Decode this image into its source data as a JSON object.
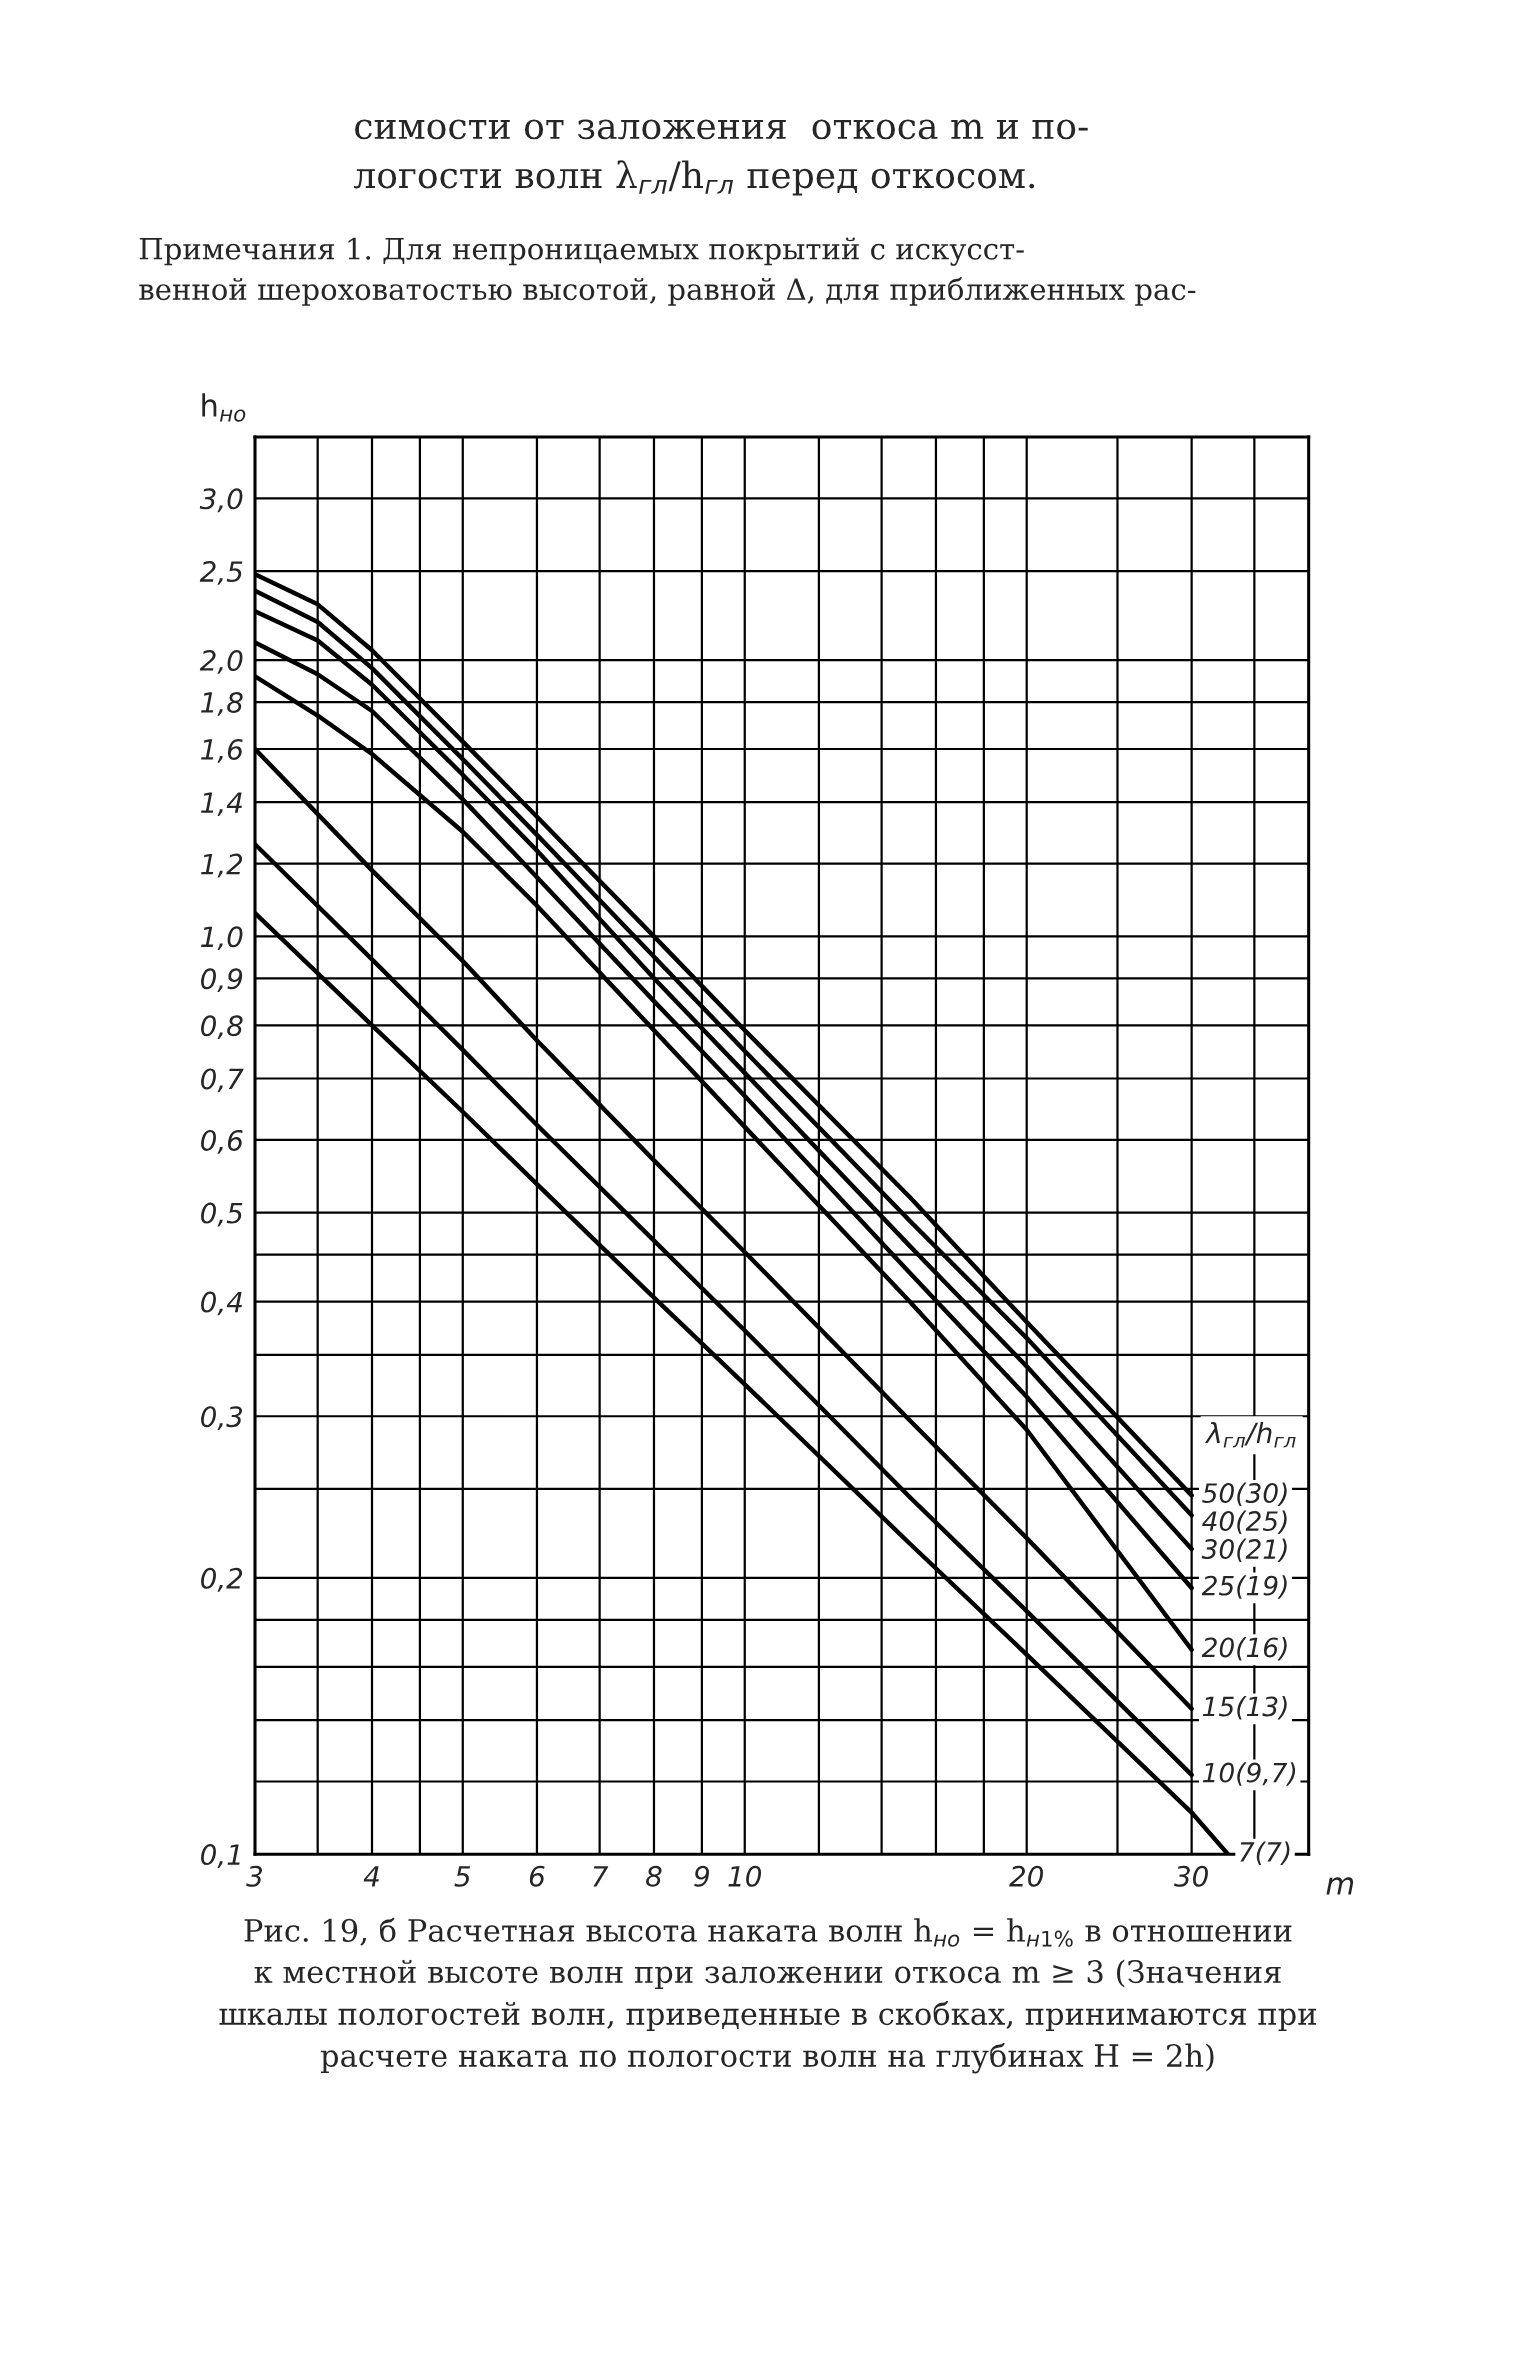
{
  "chart_data": {
    "type": "line",
    "xlabel": "m",
    "ylabel": "h$_{но}$",
    "legend_title": "λ$_{гл}$/h$_{гл}$",
    "log": "xy",
    "grid": true,
    "xlim": [
      3,
      40
    ],
    "ylim": [
      0.1,
      3.5
    ],
    "xticks": [
      3,
      {
        "value": 3.5,
        "label": null
      },
      4,
      {
        "value": 4.5,
        "label": null
      },
      5,
      6,
      7,
      8,
      9,
      10,
      {
        "value": 12,
        "label": null
      },
      {
        "value": 14,
        "label": null
      },
      {
        "value": 16,
        "label": null
      },
      {
        "value": 18,
        "label": null
      },
      20,
      {
        "value": 25,
        "label": null
      },
      30,
      {
        "value": 35,
        "label": null
      }
    ],
    "yticks": [
      {
        "value": 0.1,
        "label": "0,1"
      },
      {
        "value": 0.12,
        "label": null
      },
      {
        "value": 0.14,
        "label": null
      },
      {
        "value": 0.16,
        "label": null
      },
      {
        "value": 0.18,
        "label": null
      },
      {
        "value": 0.2,
        "label": "0,2"
      },
      {
        "value": 0.25,
        "label": null
      },
      {
        "value": 0.3,
        "label": "0,3"
      },
      {
        "value": 0.35,
        "label": null
      },
      {
        "value": 0.4,
        "label": "0,4"
      },
      {
        "value": 0.45,
        "label": null
      },
      {
        "value": 0.5,
        "label": "0,5"
      },
      {
        "value": 0.6,
        "label": "0,6"
      },
      {
        "value": 0.7,
        "label": "0,7"
      },
      {
        "value": 0.8,
        "label": "0,8"
      },
      {
        "value": 0.9,
        "label": "0,9"
      },
      {
        "value": 1.0,
        "label": "1,0"
      },
      {
        "value": 1.2,
        "label": "1,2"
      },
      {
        "value": 1.4,
        "label": "1,4"
      },
      {
        "value": 1.6,
        "label": "1,6"
      },
      {
        "value": 1.8,
        "label": "1,8"
      },
      {
        "value": 2.0,
        "label": "2,0"
      },
      {
        "value": 2.5,
        "label": "2,5"
      },
      {
        "value": 3.0,
        "label": "3,0"
      }
    ],
    "series": [
      {
        "name": "50(30)",
        "color": "#000000",
        "x": [
          3,
          3.5,
          4,
          5,
          6,
          8,
          10,
          15,
          20,
          30
        ],
        "values": [
          2.48,
          2.3,
          2.05,
          1.63,
          1.35,
          1.0,
          0.79,
          0.52,
          0.38,
          0.246
        ]
      },
      {
        "name": "40(25)",
        "color": "#000000",
        "x": [
          3,
          3.5,
          4,
          5,
          6,
          8,
          10,
          15,
          20,
          30
        ],
        "values": [
          2.38,
          2.2,
          1.96,
          1.56,
          1.29,
          0.95,
          0.75,
          0.49,
          0.365,
          0.234
        ]
      },
      {
        "name": "30(21)",
        "color": "#000000",
        "x": [
          3,
          3.5,
          4,
          5,
          6,
          8,
          10,
          15,
          20,
          30
        ],
        "values": [
          2.26,
          2.1,
          1.88,
          1.5,
          1.24,
          0.9,
          0.71,
          0.46,
          0.34,
          0.215
        ]
      },
      {
        "name": "25(19)",
        "color": "#000000",
        "x": [
          3,
          3.5,
          4,
          5,
          6,
          8,
          10,
          15,
          20,
          30
        ],
        "values": [
          2.09,
          1.93,
          1.76,
          1.41,
          1.16,
          0.85,
          0.67,
          0.43,
          0.315,
          0.195
        ]
      },
      {
        "name": "20(16)",
        "color": "#000000",
        "x": [
          3,
          3.5,
          4,
          5,
          6,
          8,
          10,
          15,
          20,
          30
        ],
        "values": [
          1.92,
          1.74,
          1.58,
          1.3,
          1.08,
          0.79,
          0.62,
          0.4,
          0.29,
          0.167
        ]
      },
      {
        "name": "15(13)",
        "color": "#000000",
        "x": [
          3,
          4,
          5,
          6,
          8,
          10,
          15,
          20,
          30
        ],
        "values": [
          1.6,
          1.18,
          0.94,
          0.77,
          0.57,
          0.453,
          0.297,
          0.221,
          0.144
        ]
      },
      {
        "name": "10(9,7)",
        "color": "#000000",
        "x": [
          3,
          4,
          5,
          6,
          8,
          10,
          15,
          20,
          30
        ],
        "values": [
          1.26,
          0.944,
          0.752,
          0.623,
          0.466,
          0.372,
          0.245,
          0.184,
          0.122
        ]
      },
      {
        "name": "7(7)",
        "color": "#000000",
        "x": [
          3,
          4,
          5,
          6,
          8,
          10,
          15,
          20,
          30,
          32.8
        ],
        "values": [
          1.06,
          0.8,
          0.644,
          0.537,
          0.404,
          0.325,
          0.218,
          0.165,
          0.111,
          0.1
        ]
      }
    ],
    "annotations": [
      "симости от заложения  откоса m и по-\nлогости волн λ$_{гл}$/h$_{гл}$ перед откосом.",
      "Примечания 1. Для непроницаемых покрытий с искусст-\nвенной шероховатостью высотой, равной Δ, для приближенных рас-",
      "Рис. 19, б Расчетная высота наката волн h$_{но}$ = h$_{н1%}$ в отношении\nк местной высоте волн при заложении откоса m ≥ 3 (Значения\nшкалы пологостей волн, приведенные в скобках, принимаются при\nрасчете наката по пологости волн на глубинах H = 2h)"
    ]
  }
}
